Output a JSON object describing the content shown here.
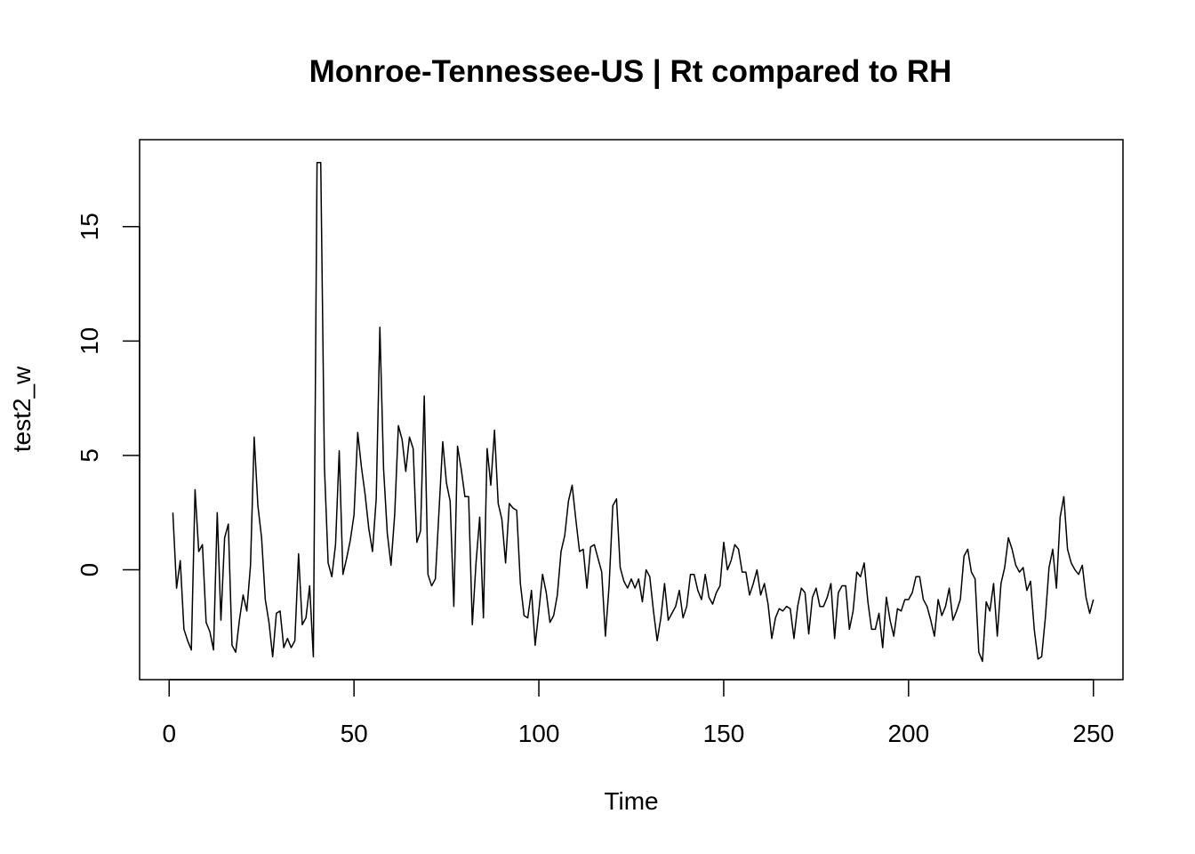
{
  "chart_data": {
    "type": "line",
    "title": "Monroe-Tennessee-US | Rt compared to RH",
    "xlabel": "Time",
    "ylabel": "test2_w",
    "xlim": [
      -8,
      258
    ],
    "ylim": [
      -4.8,
      18.8
    ],
    "xticks": [
      0,
      50,
      100,
      150,
      200,
      250
    ],
    "yticks": [
      0,
      5,
      10,
      15
    ],
    "xtick_labels": [
      "0",
      "50",
      "100",
      "150",
      "200",
      "250"
    ],
    "ytick_labels": [
      "0",
      "5",
      "10",
      "15"
    ],
    "grid": false,
    "line_color": "#000000",
    "series": [
      {
        "x_start": 1,
        "values": [
          2.5,
          -0.8,
          0.4,
          -2.6,
          -3.1,
          -3.5,
          3.5,
          0.8,
          1.1,
          -2.3,
          -2.7,
          -3.5,
          2.5,
          -2.2,
          1.4,
          2,
          -3.3,
          -3.6,
          -2.2,
          -1.1,
          -1.8,
          0.2,
          5.8,
          2.8,
          1.4,
          -1.3,
          -2.3,
          -3.8,
          -1.9,
          -1.8,
          -3.4,
          -3,
          -3.4,
          -3.1,
          0.7,
          -2.4,
          -2.1,
          -0.7,
          -3.8,
          17.8,
          17.8,
          4.5,
          0.3,
          -0.3,
          1.1,
          5.2,
          -0.2,
          0.5,
          1.3,
          2.4,
          6,
          4.5,
          3.3,
          1.8,
          0.8,
          3.1,
          10.6,
          4.4,
          1.6,
          0.2,
          2.4,
          6.3,
          5.7,
          4.3,
          5.8,
          5.3,
          1.2,
          1.7,
          7.6,
          -0.2,
          -0.7,
          -0.4,
          2.6,
          5.6,
          3.8,
          3,
          -1.6,
          5.4,
          4.4,
          3.2,
          3.2,
          -2.4,
          0.3,
          2.3,
          -2.1,
          5.3,
          3.7,
          6.1,
          2.9,
          2.2,
          0.3,
          2.9,
          2.7,
          2.6,
          -0.6,
          -2,
          -2.1,
          -0.9,
          -3.3,
          -1.8,
          -0.2,
          -1,
          -2.3,
          -2,
          -1.1,
          0.8,
          1.5,
          3,
          3.7,
          2.2,
          0.8,
          0.9,
          -0.8,
          1,
          1.1,
          0.5,
          -0.1,
          -2.9,
          -0.7,
          2.8,
          3.1,
          0.1,
          -0.5,
          -0.8,
          -0.4,
          -0.8,
          -0.4,
          -1.4,
          0,
          -0.3,
          -1.8,
          -3.1,
          -2.1,
          -0.6,
          -2.2,
          -1.9,
          -1.6,
          -0.9,
          -2.1,
          -1.6,
          -0.2,
          -0.2,
          -0.9,
          -1.3,
          -0.2,
          -1.2,
          -1.5,
          -1,
          -0.7,
          1.2,
          0,
          0.4,
          1.1,
          0.9,
          -0.1,
          -0.1,
          -1.1,
          -0.6,
          0,
          -1.1,
          -0.6,
          -1.5,
          -3,
          -2.1,
          -1.7,
          -1.8,
          -1.6,
          -1.7,
          -3,
          -1.6,
          -0.8,
          -1,
          -2.8,
          -1.2,
          -0.8,
          -1.6,
          -1.6,
          -1.2,
          -0.6,
          -3,
          -1,
          -0.7,
          -0.7,
          -2.6,
          -1.8,
          -0.1,
          -0.3,
          0.3,
          -1.4,
          -2.6,
          -2.6,
          -1.9,
          -3.4,
          -1.2,
          -2.2,
          -2.9,
          -1.7,
          -1.8,
          -1.3,
          -1.3,
          -1,
          -0.3,
          -0.3,
          -1.3,
          -1.6,
          -2.2,
          -2.9,
          -1.3,
          -2,
          -1.6,
          -0.8,
          -2.2,
          -1.8,
          -1.3,
          0.6,
          0.9,
          -0.1,
          -0.4,
          -3.6,
          -4,
          -1.4,
          -1.8,
          -0.6,
          -2.9,
          -0.6,
          0.1,
          1.4,
          0.9,
          0.2,
          -0.1,
          0.1,
          -0.9,
          -0.5,
          -2.6,
          -3.9,
          -3.8,
          -2.1,
          0.1,
          0.9,
          -0.8,
          2.3,
          3.2,
          0.9,
          0.3,
          0,
          -0.2,
          0.2,
          -1.2,
          -1.9,
          -1.3
        ]
      }
    ]
  }
}
